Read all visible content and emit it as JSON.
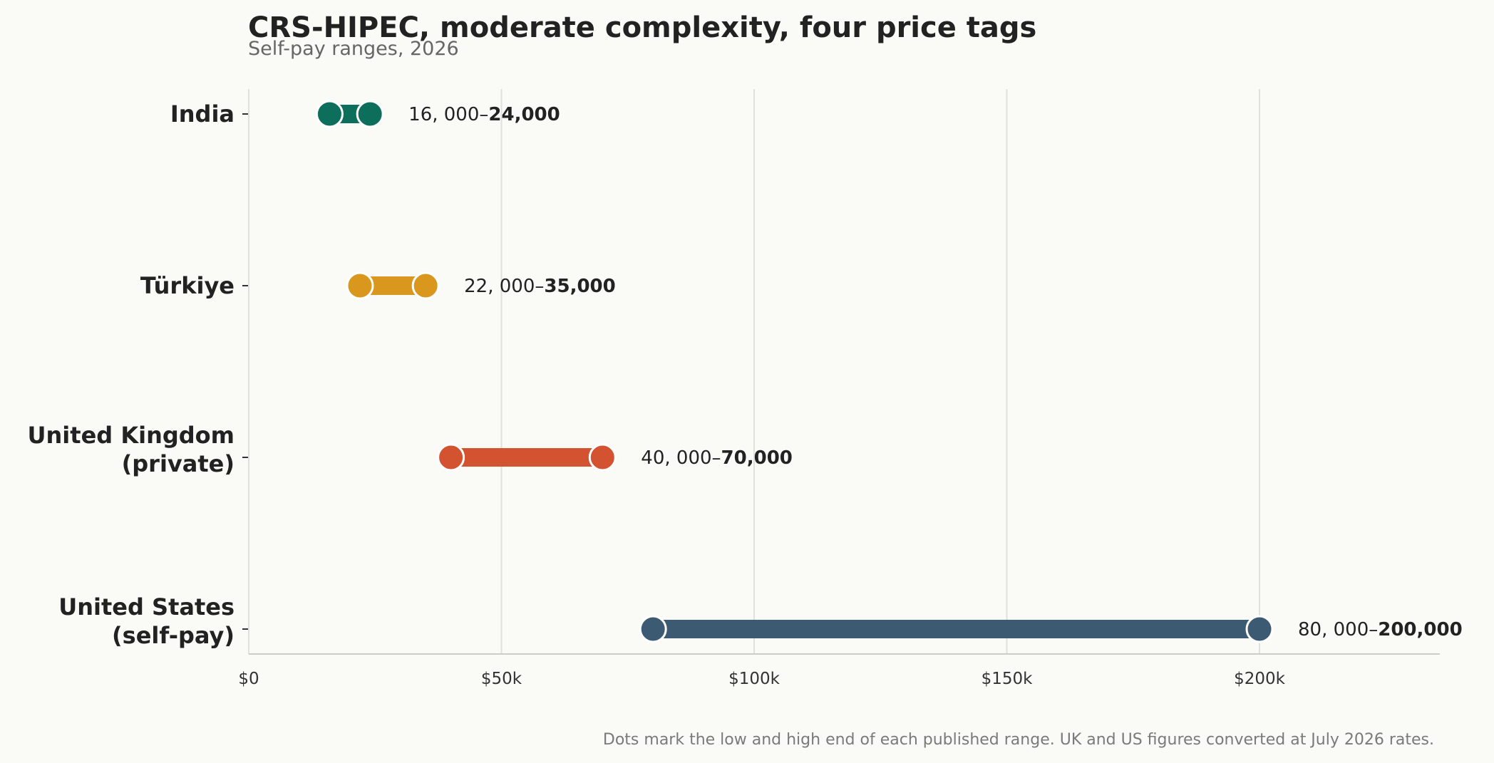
{
  "chart_data": {
    "type": "dumbbell",
    "title": "CRS-HIPEC, moderate complexity, four price tags",
    "subtitle": "Self-pay ranges, 2026",
    "xlabel": "",
    "ylabel": "",
    "xlim": [
      0,
      235000
    ],
    "x_ticks": [
      {
        "value": 0,
        "label": "$0"
      },
      {
        "value": 50000,
        "label": "$50k"
      },
      {
        "value": 100000,
        "label": "$100k"
      },
      {
        "value": 150000,
        "label": "$150k"
      },
      {
        "value": 200000,
        "label": "$200k"
      }
    ],
    "grid": "vertical",
    "categories": [
      {
        "label_lines": [
          "India"
        ],
        "low": 16000,
        "high": 24000,
        "color": "#0e6e5c",
        "low_label": "16, 000–",
        "high_label": "24,000"
      },
      {
        "label_lines": [
          "Türkiye"
        ],
        "low": 22000,
        "high": 35000,
        "color": "#d9971e",
        "low_label": "22, 000–",
        "high_label": "35,000"
      },
      {
        "label_lines": [
          "United Kingdom",
          "(private)"
        ],
        "low": 40000,
        "high": 70000,
        "color": "#d35230",
        "low_label": "40, 000–",
        "high_label": "70,000"
      },
      {
        "label_lines": [
          "United States",
          "(self-pay)"
        ],
        "low": 80000,
        "high": 200000,
        "color": "#3d5a73",
        "low_label": "80, 000–",
        "high_label": "200,000"
      }
    ],
    "footnote": "Dots mark the low and high end of each published range. UK and US figures converted at July 2026 rates."
  }
}
